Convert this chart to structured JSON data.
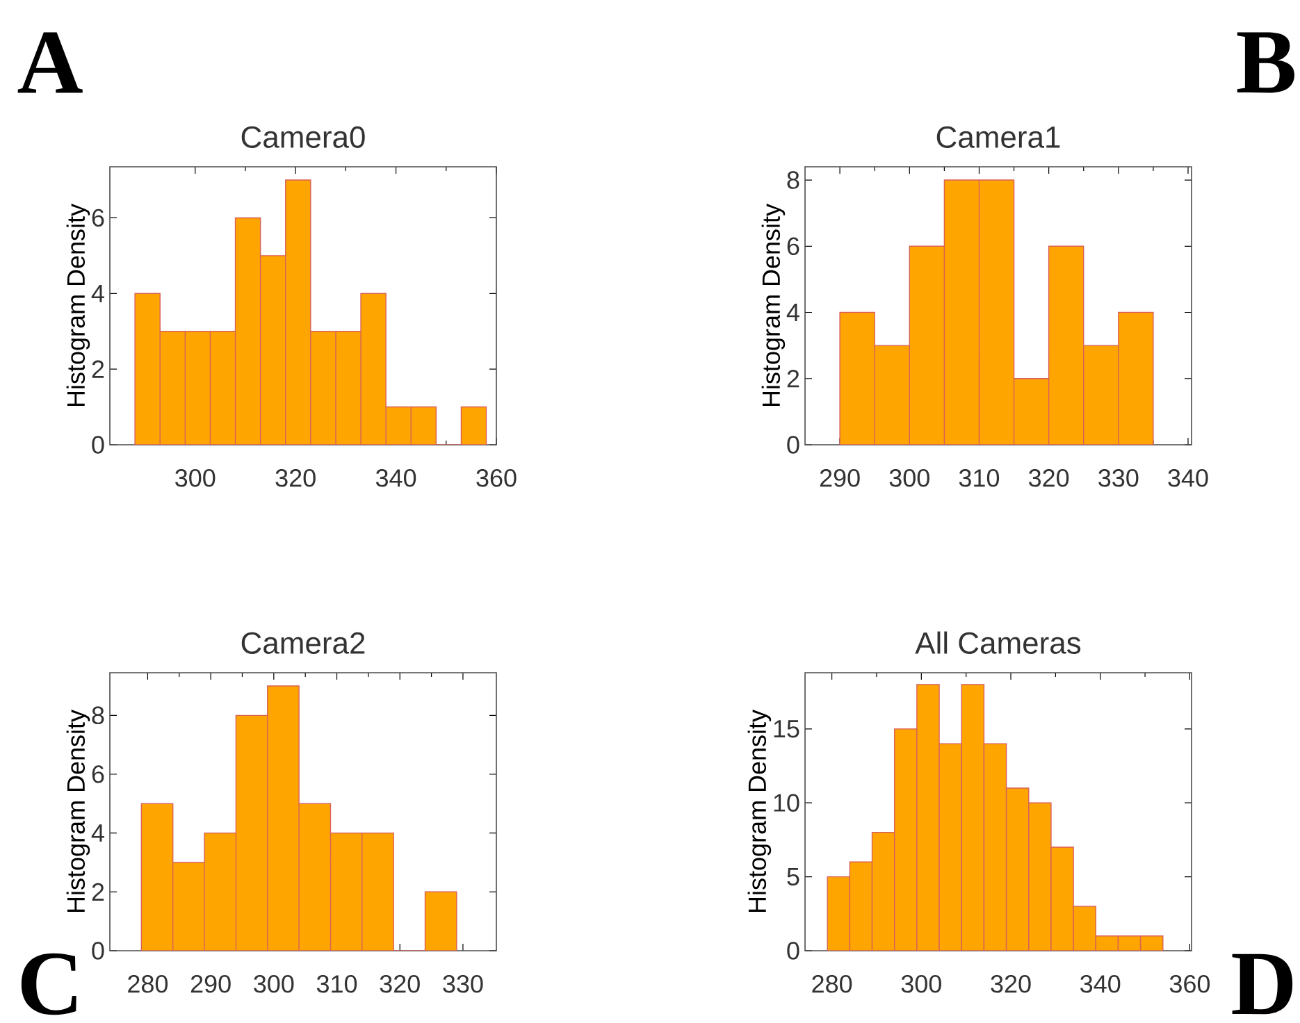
{
  "chart_data": [
    {
      "type": "histogram",
      "title": "Camera0",
      "ylabel": "Histogram Density",
      "annotations": [
        "A"
      ],
      "color": "#ffa500",
      "bins": [
        288,
        293,
        298,
        303,
        308,
        313,
        318,
        323,
        328,
        333,
        338,
        343,
        348,
        353,
        358
      ],
      "values": [
        4,
        3,
        3,
        3,
        6,
        5,
        7,
        3,
        3,
        4,
        1,
        1,
        0,
        1
      ],
      "xlim": [
        283,
        360
      ],
      "xticks": [
        300,
        320,
        340,
        360
      ],
      "ylim": [
        0,
        7.35
      ],
      "yticks": [
        0,
        2,
        4,
        6
      ]
    },
    {
      "type": "histogram",
      "title": "Camera1",
      "ylabel": "Histogram Density",
      "annotations": [
        "B"
      ],
      "color": "#ffa500",
      "bins": [
        290,
        295,
        300,
        305,
        310,
        315,
        320,
        325,
        330,
        335
      ],
      "values": [
        4,
        3,
        6,
        8,
        8,
        2,
        6,
        3,
        4
      ],
      "xlim": [
        285,
        340.5
      ],
      "xticks": [
        290,
        300,
        310,
        320,
        330,
        340
      ],
      "ylim": [
        0,
        8.4
      ],
      "yticks": [
        0,
        2,
        4,
        6,
        8
      ]
    },
    {
      "type": "histogram",
      "title": "Camera2",
      "ylabel": "Histogram Density",
      "annotations": [
        "C"
      ],
      "color": "#ffa500",
      "bins": [
        279,
        284,
        289,
        294,
        299,
        304,
        309,
        314,
        319,
        324,
        329
      ],
      "values": [
        5,
        3,
        4,
        8,
        9,
        5,
        4,
        4,
        0,
        2
      ],
      "xlim": [
        274,
        335.3
      ],
      "xticks": [
        280,
        290,
        300,
        310,
        320,
        330
      ],
      "ylim": [
        0,
        9.45
      ],
      "yticks": [
        0,
        2,
        4,
        6,
        8
      ]
    },
    {
      "type": "histogram",
      "title": "All Cameras",
      "ylabel": "Histogram Density",
      "annotations": [
        "D"
      ],
      "color": "#ffa500",
      "bins": [
        279,
        284,
        289,
        294,
        299,
        304,
        309,
        314,
        319,
        324,
        329,
        334,
        339,
        344,
        349,
        354
      ],
      "values": [
        5,
        6,
        8,
        15,
        18,
        14,
        18,
        14,
        11,
        10,
        7,
        3,
        1,
        1,
        1
      ],
      "xlim": [
        274,
        360.4
      ],
      "xticks": [
        280,
        300,
        320,
        340,
        360
      ],
      "ylim": [
        0,
        18.8
      ],
      "yticks": [
        0,
        5,
        10,
        15
      ]
    }
  ]
}
